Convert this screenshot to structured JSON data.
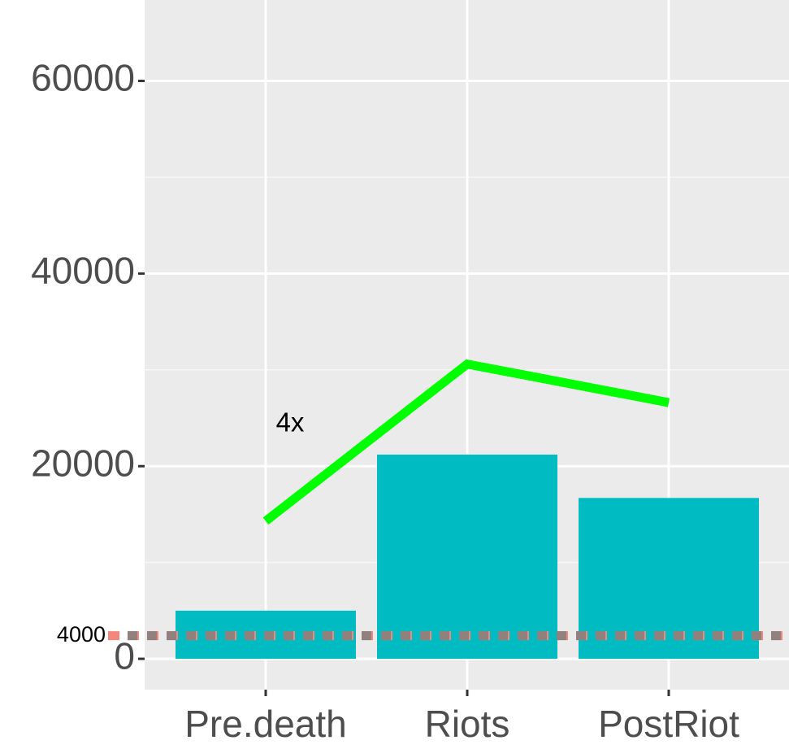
{
  "chart_data": {
    "type": "bar",
    "categories": [
      "Pre.death",
      "Riots",
      "PostRiot"
    ],
    "values": [
      5000,
      21200,
      16700
    ],
    "color": "#00bbc1",
    "series": [
      {
        "type": "line",
        "color": "#00ff00",
        "values": [
          14300,
          30600,
          26600
        ]
      }
    ],
    "hline": {
      "value": 2400,
      "color": "#f4877a",
      "dash_color": "#7f7f7f"
    },
    "annotations": [
      {
        "text": "4000"
      },
      {
        "text": "4x"
      }
    ],
    "ylim": [
      -3200,
      68400
    ],
    "yticks": [
      0,
      20000,
      40000,
      60000
    ],
    "minor_yticks": [
      10000,
      30000,
      50000
    ],
    "grid": true
  }
}
